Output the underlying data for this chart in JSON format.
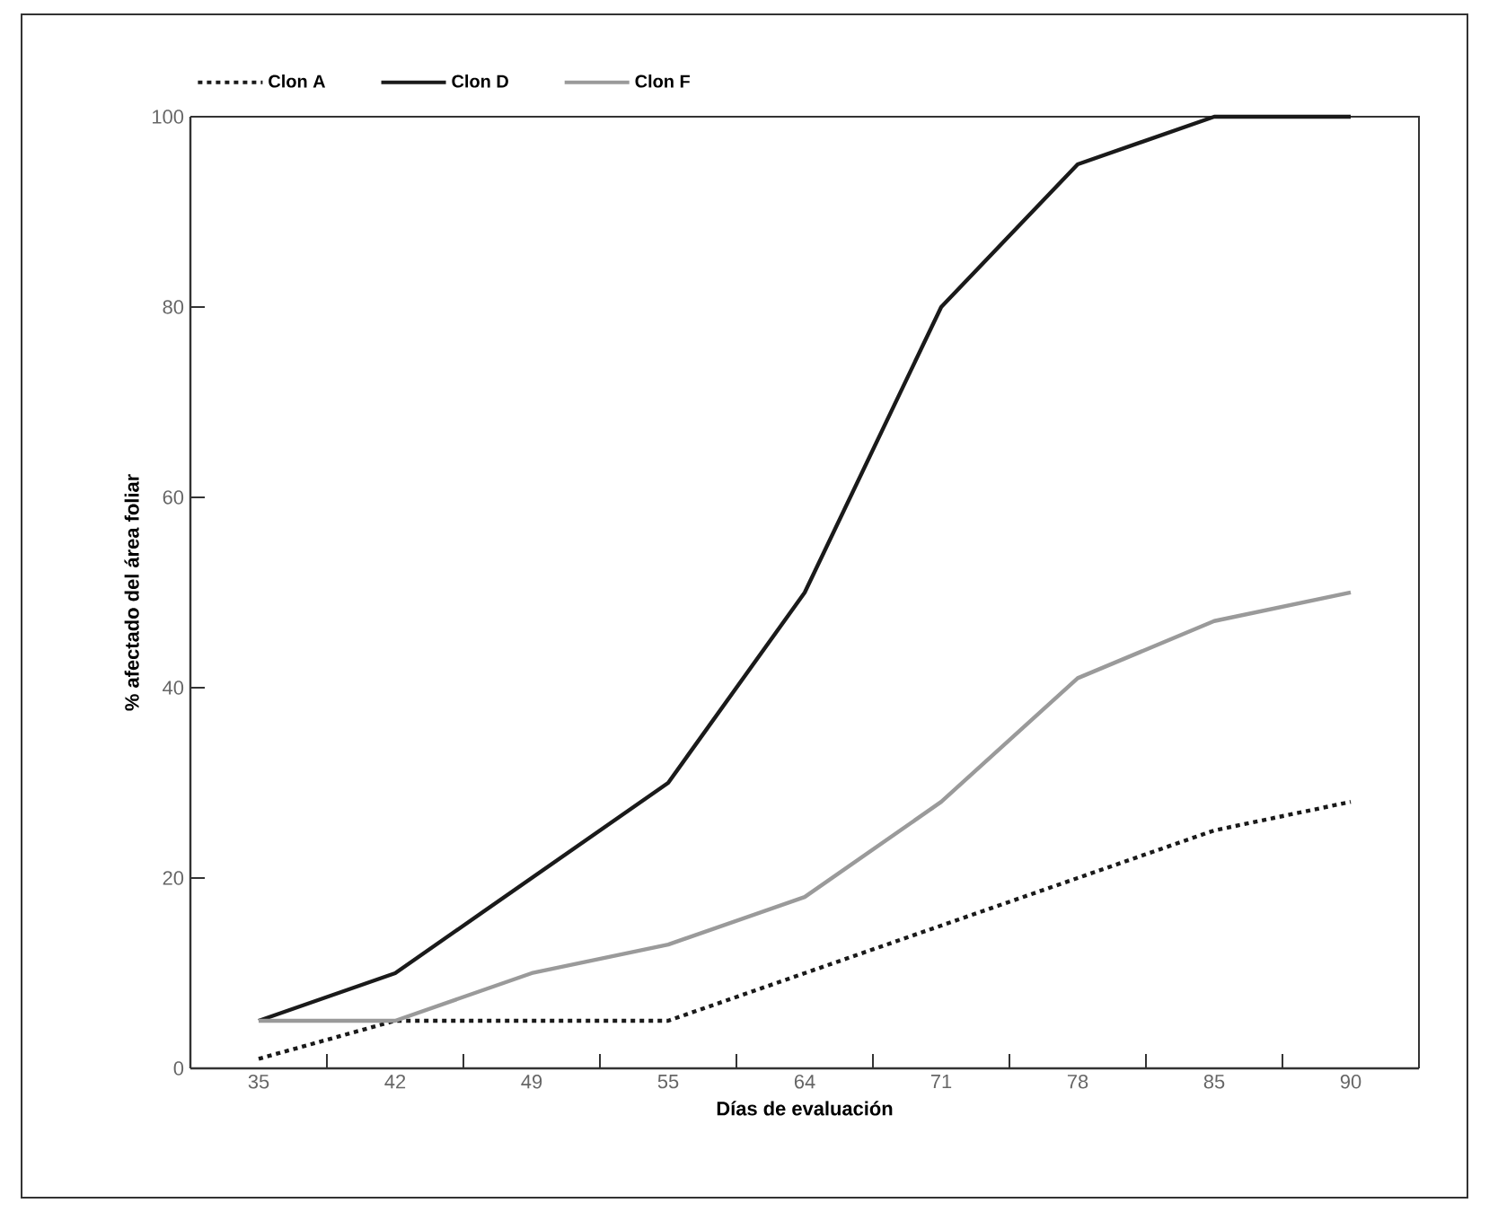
{
  "chart_data": {
    "type": "line",
    "xlabel": "Días de evaluación",
    "ylabel": "% afectado del área foliar",
    "categories": [
      "35",
      "42",
      "49",
      "55",
      "64",
      "71",
      "78",
      "85",
      "90"
    ],
    "series": [
      {
        "name": "Clon A",
        "color": "#1a1a1a",
        "line_style": "dotted",
        "values": [
          1,
          5,
          5,
          5,
          10,
          15,
          20,
          25,
          28
        ]
      },
      {
        "name": "Clon D",
        "color": "#1a1a1a",
        "line_style": "solid",
        "values": [
          5,
          10,
          20,
          30,
          50,
          80,
          95,
          100,
          100
        ]
      },
      {
        "name": "Clon F",
        "color": "#9a9a9a",
        "line_style": "solid",
        "values": [
          5,
          5,
          10,
          13,
          18,
          28,
          41,
          47,
          50
        ]
      }
    ],
    "ylim": [
      0,
      100
    ],
    "yticks": [
      0,
      20,
      40,
      60,
      80,
      100
    ],
    "legend": "top left",
    "marker": "none",
    "grid": false
  }
}
